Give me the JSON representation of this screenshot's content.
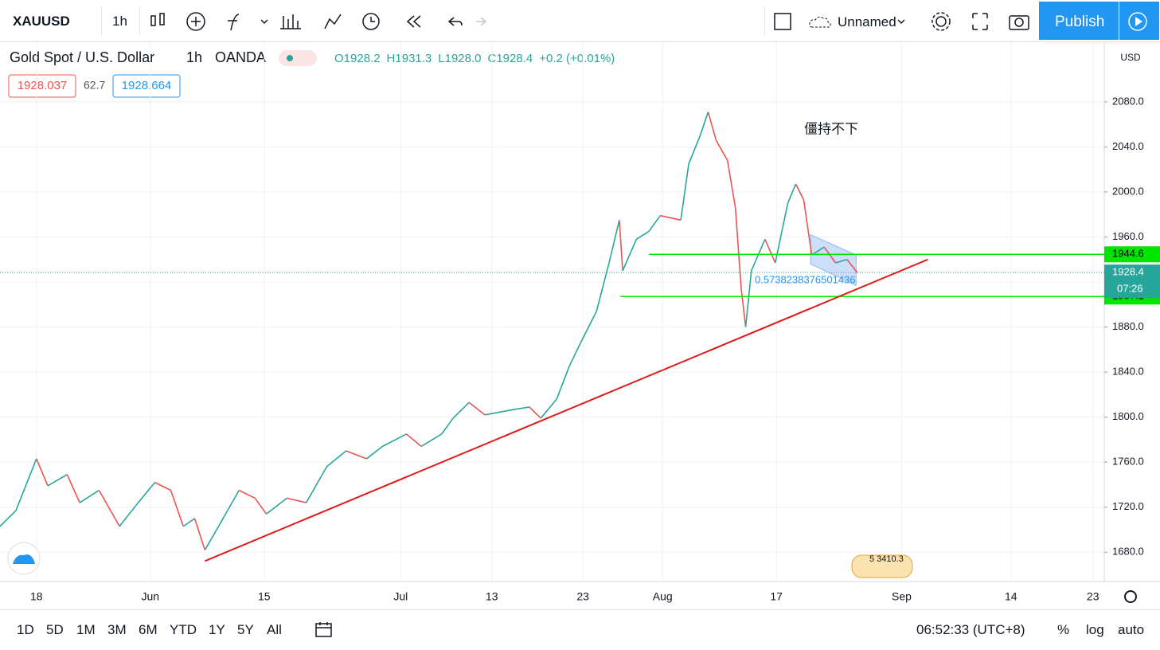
{
  "toolbar": {
    "symbol": "XAUUSD",
    "interval": "1h",
    "layout_name": "Unnamed",
    "publish": "Publish"
  },
  "legend": {
    "instrument": "Gold Spot / U.S. Dollar",
    "interval": "1h",
    "source": "OANDA",
    "ohlc": [
      "O1928.2",
      "H1931.3",
      "L1928.0",
      "C1928.4",
      "+0.2 (+0.01%)"
    ],
    "bid": "1928.037",
    "spread": "62.7",
    "ask": "1928.664"
  },
  "chart_data": {
    "type": "line",
    "currency": "USD",
    "x": [
      -3.2,
      -1.8,
      0,
      1,
      2.7,
      3.8,
      5.5,
      7.3,
      8.7,
      10.4,
      11.8,
      12.9,
      13.9,
      14.8,
      16,
      17.8,
      19.2,
      20.2,
      22,
      23.7,
      25.5,
      27.2,
      29,
      30.4,
      32.5,
      33.8,
      35.6,
      36.6,
      38,
      39.4,
      41.5,
      43.3,
      44.3,
      45.7,
      46.8,
      47.8,
      49.2,
      50.3,
      51.2,
      51.5,
      52.7,
      53.8,
      54.8,
      56.6,
      57.3,
      58.3,
      59,
      59.7,
      60.7,
      61.4,
      61.9,
      62.3,
      62.8,
      64,
      64.9,
      66,
      66.7,
      67.4,
      68.1,
      69.2,
      70.2,
      71.2,
      72.1
    ],
    "values": [
      1703,
      1717,
      1763,
      1739,
      1749,
      1724,
      1735,
      1703,
      1721,
      1742,
      1735,
      1703,
      1710,
      1682,
      1703,
      1735,
      1728,
      1714,
      1728,
      1724,
      1756,
      1770,
      1763,
      1774,
      1785,
      1774,
      1785,
      1799,
      1813,
      1802,
      1806,
      1809,
      1799,
      1816,
      1845,
      1866,
      1894,
      1937,
      1975,
      1930,
      1958,
      1965,
      1979,
      1975,
      2025,
      2050,
      2071,
      2046,
      2028,
      1986,
      1915,
      1880,
      1930,
      1958,
      1937,
      1990,
      2007,
      1993,
      1944,
      1951,
      1937,
      1940,
      1928.4
    ],
    "up_color": "#26a69a",
    "down_color": "#ef5350",
    "xlim": [
      -3.2,
      93.8
    ],
    "xticks": [
      {
        "value": 0,
        "label": "18"
      },
      {
        "value": 10,
        "label": "Jun"
      },
      {
        "value": 20,
        "label": "15"
      },
      {
        "value": 32,
        "label": "Jul"
      },
      {
        "value": 40,
        "label": "13"
      },
      {
        "value": 48,
        "label": "23"
      },
      {
        "value": 55,
        "label": "Aug"
      },
      {
        "value": 65,
        "label": "17"
      },
      {
        "value": 76,
        "label": "Sep"
      },
      {
        "value": 85.6,
        "label": "14"
      },
      {
        "value": 92.8,
        "label": "23"
      }
    ],
    "ylim": [
      1654,
      2133
    ],
    "yticks": [
      {
        "value": 1680,
        "label": "1680.0"
      },
      {
        "value": 1720,
        "label": "1720.0"
      },
      {
        "value": 1760,
        "label": "1760.0"
      },
      {
        "value": 1800,
        "label": "1800.0"
      },
      {
        "value": 1840,
        "label": "1840.0"
      },
      {
        "value": 1880,
        "label": "1880.0"
      },
      {
        "value": 1920,
        "label": "1920.0"
      },
      {
        "value": 1960,
        "label": "1960.0"
      },
      {
        "value": 2000,
        "label": "2000.0"
      },
      {
        "value": 2040,
        "label": "2040.0"
      },
      {
        "value": 2080,
        "label": "2080.0"
      }
    ],
    "grid": true,
    "levels": [
      {
        "value": 1944.6,
        "from": 53.8,
        "color": "#00e600"
      },
      {
        "value": 1907.1,
        "from": 51.3,
        "color": "#00e600"
      }
    ],
    "countdown": "07:26",
    "trendline": {
      "x": [
        14.8,
        78.3
      ],
      "values": [
        1672.2,
        1940
      ],
      "color": "#e01b1b"
    },
    "channel": {
      "x": [
        68,
        72
      ],
      "top": [
        1962,
        1944
      ],
      "bottom": [
        1936,
        1917
      ],
      "color": "#90b8f0"
    },
    "annotation": "僵持不下",
    "fib_label": "0.5738238376501436",
    "event_badge": "5 3410.3"
  },
  "bottom_bar": {
    "ranges": [
      "1D",
      "5D",
      "1M",
      "3M",
      "6M",
      "YTD",
      "1Y",
      "5Y",
      "All"
    ],
    "time": "06:52:33 (UTC+8)",
    "options": [
      "%",
      "log",
      "auto"
    ]
  }
}
